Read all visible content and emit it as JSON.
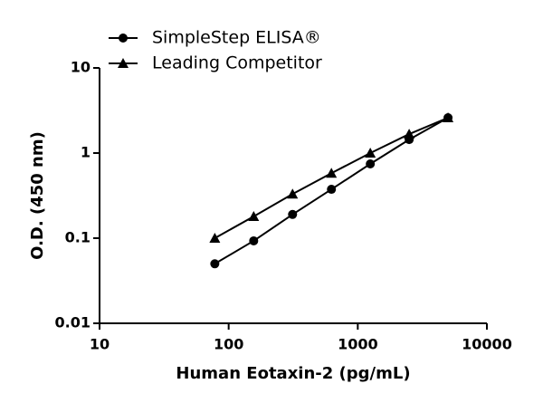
{
  "chart_data": {
    "type": "line",
    "x_label": "Human Eotaxin-2 (pg/mL)",
    "y_label": "O.D. (450 nm)",
    "x": [
      78.1,
      156.25,
      312.5,
      625,
      1250,
      2500,
      5000
    ],
    "series": [
      {
        "name": "SimpleStep ELISA®",
        "color": "#000000",
        "marker": "circle",
        "values": [
          0.05,
          0.093,
          0.19,
          0.375,
          0.745,
          1.44,
          2.6
        ]
      },
      {
        "name": "Leading Competitor",
        "color": "#000000",
        "marker": "triangle",
        "values": [
          0.1,
          0.18,
          0.33,
          0.58,
          1.0,
          1.67,
          2.6
        ]
      }
    ],
    "xlim": [
      10,
      10000
    ],
    "xticks": [
      10,
      100,
      1000,
      10000
    ],
    "ylim": [
      0.01,
      10
    ],
    "yticks": [
      0.01,
      0.1,
      1,
      10
    ],
    "x_scale": "log",
    "y_scale": "log",
    "legend": "top-left"
  }
}
